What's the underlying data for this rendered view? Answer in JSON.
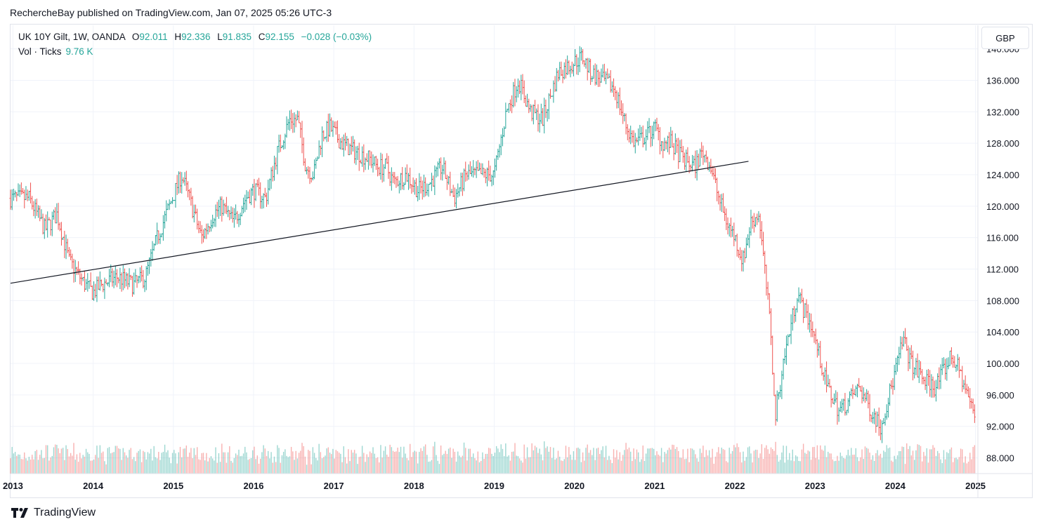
{
  "caption": "RechercheBay published on TradingView.com, Jan 07, 2025 05:26 UTC-3",
  "legend": {
    "symbol": "UK 10Y Gilt, 1W, OANDA",
    "o_label": "O",
    "o_value": "92.011",
    "h_label": "H",
    "h_value": "92.336",
    "l_label": "L",
    "l_value": "91.835",
    "c_label": "C",
    "c_value": "92.155",
    "change": "−0.028 (−0.03%)",
    "vol_label": "Vol · Ticks",
    "vol_value": "9.76 K"
  },
  "currency_button": "GBP",
  "brand": "TradingView",
  "colors": {
    "up": "#26a69a",
    "down": "#ef5350",
    "grid": "#f0f3fa",
    "trendline": "#131722"
  },
  "chart_data": {
    "type": "line",
    "title": "UK 10Y Gilt, 1W, OANDA",
    "x_ticks": [
      "2013",
      "2014",
      "2015",
      "2016",
      "2017",
      "2018",
      "2019",
      "2020",
      "2021",
      "2022",
      "2023",
      "2024",
      "2025"
    ],
    "y_ticks": [
      "140.000",
      "136.000",
      "132.000",
      "128.000",
      "124.000",
      "120.000",
      "116.000",
      "112.000",
      "108.000",
      "104.000",
      "100.000",
      "96.000",
      "92.000",
      "88.000"
    ],
    "ylim": [
      86,
      143
    ],
    "xlim": [
      2012.97,
      2025.03
    ],
    "grid": true,
    "series": [
      {
        "values_x": [
          2012.97,
          2013.2,
          2013.4,
          2013.55,
          2013.7,
          2013.9,
          2014.0,
          2014.1,
          2014.3,
          2014.5,
          2014.65,
          2014.8,
          2014.95,
          2015.1,
          2015.2,
          2015.35,
          2015.5,
          2015.6,
          2015.75,
          2015.9,
          2016.0,
          2016.15,
          2016.3,
          2016.45,
          2016.55,
          2016.65,
          2016.75,
          2016.85,
          2016.95,
          2017.1,
          2017.25,
          2017.45,
          2017.55,
          2017.65,
          2017.75,
          2017.9,
          2018.05,
          2018.2,
          2018.35,
          2018.5,
          2018.65,
          2018.75,
          2018.9,
          2019.0,
          2019.15,
          2019.3,
          2019.45,
          2019.6,
          2019.7,
          2019.8,
          2019.95,
          2020.1,
          2020.2,
          2020.35,
          2020.5,
          2020.65,
          2020.75,
          2020.9,
          2021.0,
          2021.1,
          2021.2,
          2021.35,
          2021.5,
          2021.6,
          2021.7,
          2021.8,
          2021.9,
          2022.0,
          2022.1,
          2022.2,
          2022.3,
          2022.45,
          2022.5,
          2022.6,
          2022.72,
          2022.78,
          2022.85,
          2022.95,
          2023.05,
          2023.15,
          2023.3,
          2023.4,
          2023.55,
          2023.7,
          2023.82,
          2023.95,
          2024.1,
          2024.2,
          2024.35,
          2024.5,
          2024.6,
          2024.7,
          2024.8,
          2024.9,
          2025.0
        ],
        "values_y": [
          121,
          121,
          117,
          119,
          113,
          110,
          109,
          110,
          111,
          110,
          111,
          116,
          120,
          124,
          121,
          116,
          119,
          120,
          118,
          121,
          122,
          121,
          127,
          131,
          131,
          125,
          124,
          129,
          130,
          128,
          127,
          126,
          125,
          125,
          123,
          124,
          122,
          123,
          125,
          121,
          124,
          124,
          124,
          124,
          132,
          136,
          132,
          131,
          134,
          137,
          138,
          139,
          137,
          136,
          135,
          130,
          128,
          129,
          130,
          128,
          128,
          126,
          125,
          127,
          125,
          121,
          118,
          116,
          113,
          118,
          119,
          104,
          93,
          100,
          106,
          109,
          107,
          105,
          101,
          97,
          94,
          95,
          97,
          94,
          92,
          97,
          103,
          100,
          98,
          97,
          99,
          101,
          99,
          96,
          93
        ],
        "name": ""
      },
      {
        "name": "",
        "type": "trendline",
        "x": [
          2012.97,
          2022.17
        ],
        "y": [
          110.2,
          125.7
        ]
      }
    ],
    "volume": {
      "label": "Vol · Ticks",
      "last": "9.76 K"
    }
  }
}
